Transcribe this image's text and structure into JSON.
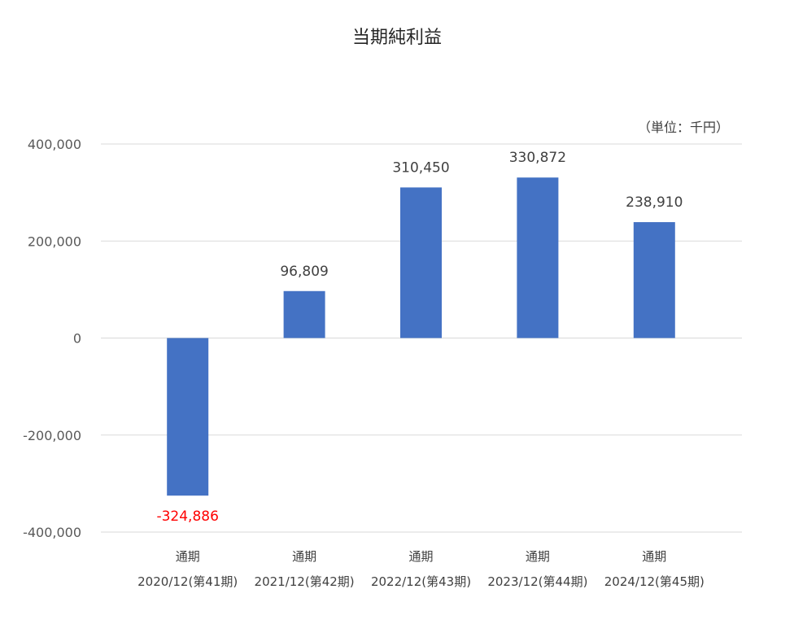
{
  "chart_data": {
    "type": "bar",
    "title": "当期純利益",
    "unit_note": "（単位：千円）",
    "categories": [
      [
        "通期",
        "2020/12(第41期)"
      ],
      [
        "通期",
        "2021/12(第42期)"
      ],
      [
        "通期",
        "2022/12(第43期)"
      ],
      [
        "通期",
        "2023/12(第44期)"
      ],
      [
        "通期",
        "2024/12(第45期)"
      ]
    ],
    "values": [
      -324886,
      96809,
      310450,
      330872,
      238910
    ],
    "value_labels": [
      "-324,886",
      "96,809",
      "310,450",
      "330,872",
      "238,910"
    ],
    "yticks": [
      400000,
      200000,
      0,
      -200000,
      -400000
    ],
    "ytick_labels": [
      "400,000",
      "200,000",
      "0",
      "-200,000",
      "-400,000"
    ],
    "ylim": [
      -400000,
      400000
    ],
    "grid": true,
    "bar_color": "#4472c4",
    "negative_label_color": "#ff0000"
  }
}
